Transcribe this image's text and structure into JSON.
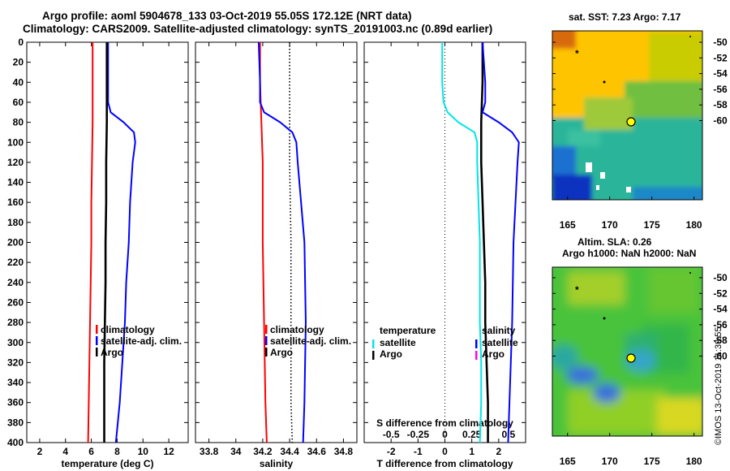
{
  "header": {
    "line1": "Argo profile: aoml 5904678_133 03-Oct-2019 55.05S 172.12E (NRT data)",
    "line2": "Climatology: CARS2009. Satellite-adjusted climatology: synTS_20191003.nc (0.89d earlier)"
  },
  "map_top": {
    "title": "sat. SST: 7.23 Argo: 7.17",
    "ytick_labels": [
      "-50",
      "-52",
      "-54",
      "-56",
      "-58",
      "-60"
    ],
    "xtick_labels": [
      "165",
      "170",
      "175",
      "180"
    ]
  },
  "map_bottom": {
    "title1": "Altim. SLA: 0.26",
    "title2": "Argo h1000: NaN h2000: NaN",
    "ytick_labels": [
      "-50",
      "-52",
      "-54",
      "-56",
      "-58",
      "-60"
    ],
    "xtick_labels": [
      "165",
      "170",
      "175",
      "180"
    ]
  },
  "watermark": "©IMOS 13-Oct-2019 11:39:55",
  "colors": {
    "climatology": "#ff0000",
    "satellite": "#0000ff",
    "argo": "#000000",
    "sat_temp_diff": "#00e5e5",
    "argo_sal_diff": "#ff00ff"
  },
  "chart_data": [
    {
      "type": "line",
      "xlabel": "temperature (deg C)",
      "ylabel": "",
      "xlim": [
        1,
        13.5
      ],
      "ylim": [
        400,
        0
      ],
      "xtick_labels": [
        "2",
        "4",
        "6",
        "8",
        "10",
        "12"
      ],
      "ytick_labels": [
        "0",
        "20",
        "40",
        "60",
        "80",
        "100",
        "120",
        "140",
        "160",
        "180",
        "200",
        "220",
        "240",
        "260",
        "280",
        "300",
        "320",
        "340",
        "360",
        "380",
        "400"
      ],
      "legend": [
        "climatology",
        "satellite-adj. clim.",
        "Argo"
      ],
      "series": [
        {
          "name": "climatology",
          "depth": [
            0,
            40,
            80,
            120,
            160,
            200,
            240,
            280,
            320,
            360,
            400
          ],
          "values": [
            6.1,
            6.1,
            6.1,
            6.05,
            6.0,
            6.0,
            5.95,
            5.9,
            5.85,
            5.8,
            5.75
          ]
        },
        {
          "name": "satellite-adj. clim.",
          "depth": [
            0,
            40,
            60,
            70,
            80,
            90,
            100,
            120,
            160,
            200,
            240,
            280,
            320,
            360,
            400
          ],
          "values": [
            7.3,
            7.3,
            7.3,
            7.5,
            8.5,
            9.3,
            9.4,
            9.2,
            9.0,
            8.9,
            8.7,
            8.6,
            8.4,
            8.2,
            7.9
          ]
        },
        {
          "name": "Argo",
          "depth": [
            0,
            40,
            80,
            120,
            160,
            200,
            240,
            280,
            320,
            360,
            400
          ],
          "values": [
            7.2,
            7.2,
            7.2,
            7.15,
            7.15,
            7.1,
            7.1,
            7.05,
            7.0,
            7.0,
            7.0
          ]
        }
      ]
    },
    {
      "type": "line",
      "xlabel": "salinity",
      "xlim": [
        33.7,
        34.9
      ],
      "ylim": [
        400,
        0
      ],
      "xtick_labels": [
        "33.8",
        "34",
        "34.2",
        "34.4",
        "34.6",
        "34.8"
      ],
      "legend": [
        "climatology",
        "satellite-adj. clim.",
        "Argo"
      ],
      "series": [
        {
          "name": "climatology",
          "depth": [
            0,
            40,
            80,
            120,
            200,
            280,
            360,
            400
          ],
          "values": [
            34.18,
            34.18,
            34.19,
            34.2,
            34.2,
            34.21,
            34.22,
            34.23
          ]
        },
        {
          "name": "satellite-adj. clim.",
          "depth": [
            0,
            40,
            60,
            70,
            80,
            90,
            100,
            120,
            200,
            280,
            360,
            400
          ],
          "values": [
            34.17,
            34.18,
            34.18,
            34.21,
            34.33,
            34.42,
            34.45,
            34.46,
            34.51,
            34.52,
            34.51,
            34.5
          ]
        },
        {
          "name": "Argo",
          "depth": [
            0,
            40,
            80,
            120,
            200,
            280,
            360,
            400
          ],
          "values": [
            34.4,
            34.4,
            34.4,
            34.4,
            34.41,
            34.41,
            34.41,
            34.42
          ]
        }
      ]
    },
    {
      "type": "line",
      "xlabel": "T difference from climatology",
      "xlabel_top": "S difference from climatology",
      "xlim": [
        -3,
        3
      ],
      "ylim": [
        400,
        0
      ],
      "xtick_labels": [
        "-2",
        "-1",
        "0",
        "1",
        "2"
      ],
      "xtick_top_labels": [
        "-0.5",
        "-0.25",
        "0",
        "0.25",
        "0.5"
      ],
      "legend_left_title": "temperature",
      "legend_left": [
        "satellite",
        "Argo"
      ],
      "legend_right_title": "salinity",
      "legend_right": [
        "satellite",
        "Argo"
      ],
      "series": [
        {
          "name": "T satellite",
          "depth": [
            0,
            40,
            60,
            70,
            80,
            90,
            100,
            120,
            160,
            200,
            240,
            280,
            320,
            360,
            400
          ],
          "values": [
            -0.1,
            -0.1,
            -0.05,
            0.1,
            0.5,
            1.1,
            1.2,
            1.2,
            1.25,
            1.3,
            1.3,
            1.3,
            1.35,
            1.35,
            1.3
          ]
        },
        {
          "name": "T Argo",
          "depth": [
            0,
            40,
            80,
            120,
            160,
            200,
            240,
            280,
            320,
            360,
            400
          ],
          "values": [
            1.4,
            1.4,
            1.35,
            1.35,
            1.4,
            1.45,
            1.5,
            1.5,
            1.55,
            1.6,
            1.6
          ]
        },
        {
          "name": "S satellite",
          "depth": [
            0,
            40,
            60,
            70,
            80,
            90,
            100,
            120,
            200,
            280,
            360,
            400
          ],
          "values": [
            1.4,
            1.5,
            1.5,
            1.4,
            2.0,
            2.5,
            2.75,
            2.7,
            2.55,
            2.5,
            2.4,
            2.35
          ]
        }
      ]
    }
  ]
}
